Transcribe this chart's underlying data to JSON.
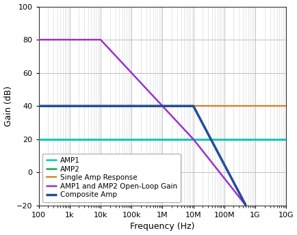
{
  "xlabel": "Frequency (Hz)",
  "ylabel": "Gain (dB)",
  "ylim": [
    -20,
    100
  ],
  "yticks": [
    -20,
    0,
    20,
    40,
    60,
    80,
    100
  ],
  "xmin": 100,
  "xmax": 10000000000.0,
  "lines": {
    "AMP1": {
      "color": "#00C8C8",
      "linewidth": 1.8,
      "zorder": 3,
      "points": [
        [
          100,
          20
        ],
        [
          10000000000.0,
          20
        ]
      ]
    },
    "AMP2": {
      "color": "#00B050",
      "linewidth": 1.8,
      "zorder": 3,
      "points": [
        [
          100,
          20
        ],
        [
          10000000000.0,
          20
        ]
      ]
    },
    "Single Amp Response": {
      "color": "#E07820",
      "linewidth": 1.6,
      "zorder": 3,
      "points": [
        [
          100,
          40
        ],
        [
          10000000000.0,
          40
        ]
      ]
    },
    "AMP1 and AMP2 Open-Loop Gain": {
      "color": "#9B30CC",
      "linewidth": 1.8,
      "zorder": 4,
      "points": [
        [
          100,
          80
        ],
        [
          10000.0,
          80
        ],
        [
          10000000.0,
          20
        ],
        [
          500000000.0,
          -20
        ]
      ]
    },
    "Composite Amp": {
      "color": "#1F4E96",
      "linewidth": 2.5,
      "zorder": 5,
      "points": [
        [
          100,
          40
        ],
        [
          10000000.0,
          40
        ],
        [
          500000000.0,
          -20
        ]
      ]
    }
  },
  "background_color": "#FFFFFF",
  "plot_bg_color": "#FFFFFF",
  "major_grid_color": "#C0C0C0",
  "minor_grid_color": "#DCDCDC",
  "legend_loc": "lower left",
  "legend_fontsize": 7.5,
  "legend_order": [
    "AMP1",
    "AMP2",
    "Single Amp Response",
    "AMP1 and AMP2 Open-Loop Gain",
    "Composite Amp"
  ],
  "draw_order": [
    "AMP1 and AMP2 Open-Loop Gain",
    "Single Amp Response",
    "AMP2",
    "AMP1",
    "Composite Amp"
  ],
  "xtick_labels": {
    "100": "100",
    "1000": "1k",
    "10000": "10k",
    "100000": "100k",
    "1000000": "1M",
    "10000000": "10M",
    "100000000": "100M",
    "1000000000": "1G",
    "10000000000": "10G"
  }
}
